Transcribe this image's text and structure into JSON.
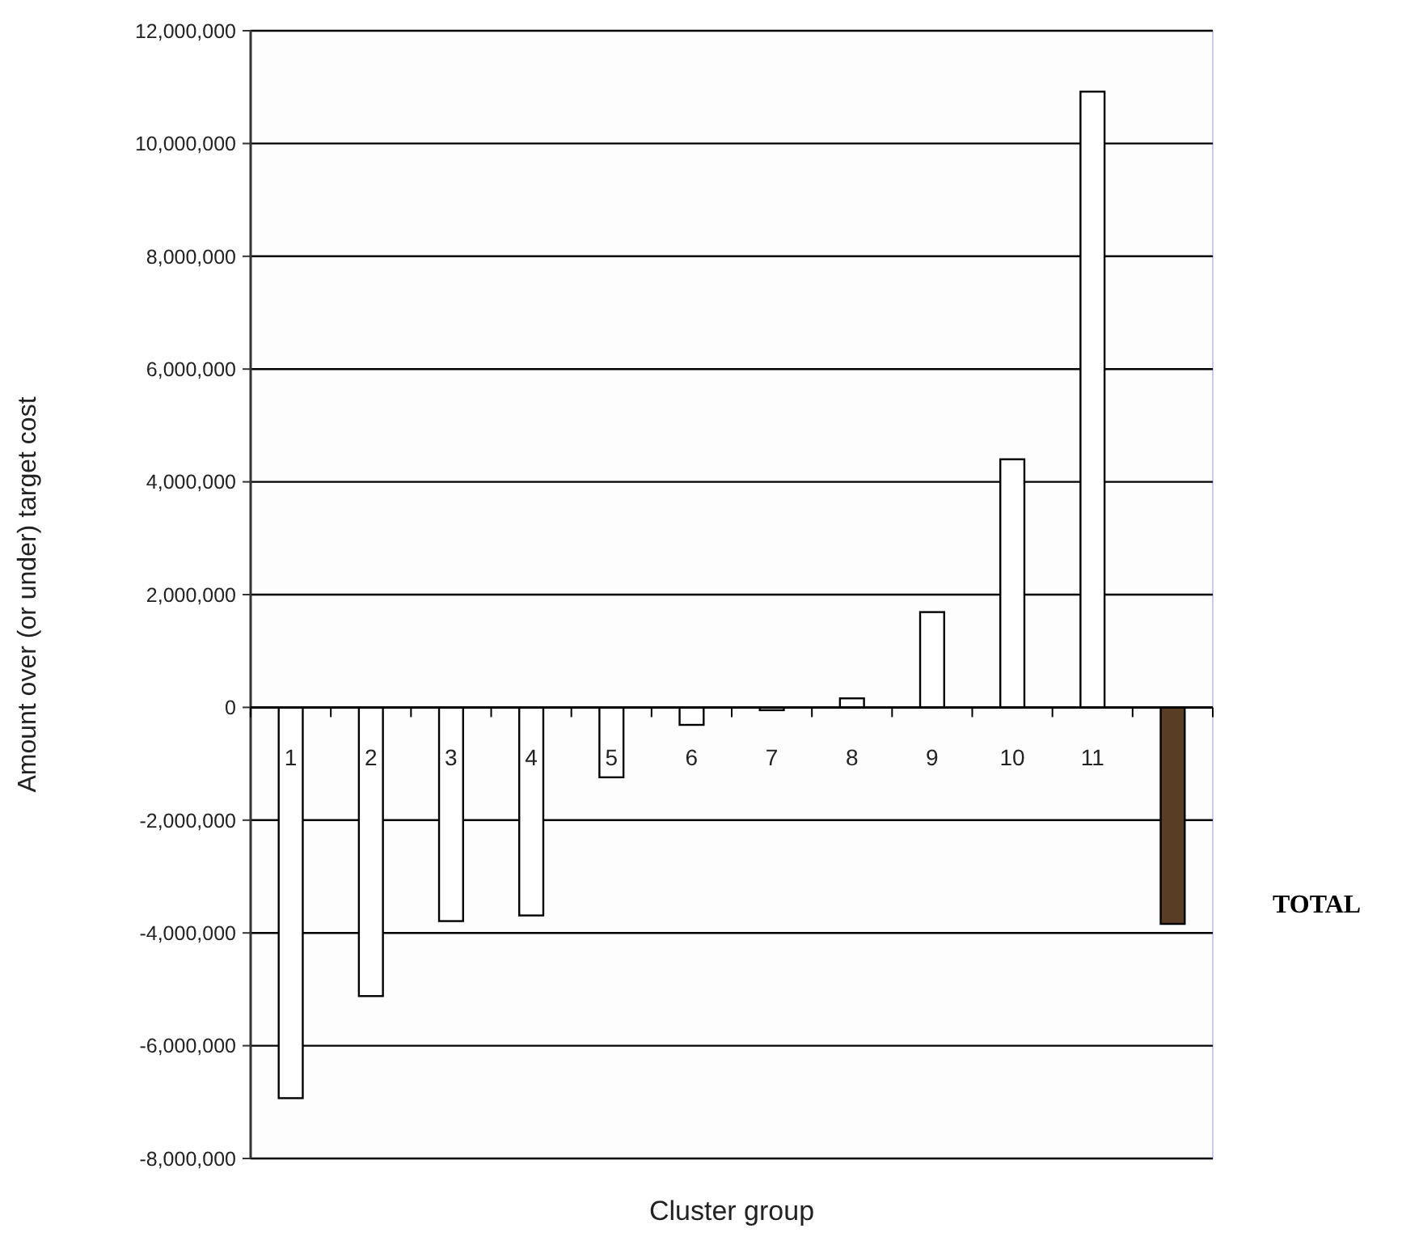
{
  "chart_data": {
    "type": "bar",
    "xlabel": "Cluster group",
    "ylabel": "Amount over (or under) target cost",
    "categories": [
      "1",
      "2",
      "3",
      "4",
      "5",
      "6",
      "7",
      "8",
      "9",
      "10",
      "11",
      null
    ],
    "values": [
      -6930000,
      -5120000,
      -3790000,
      -3690000,
      -1240000,
      -310000,
      -50000,
      160000,
      1690000,
      4400000,
      10920000,
      -3840000
    ],
    "colors": [
      "#ffffff",
      "#ffffff",
      "#ffffff",
      "#ffffff",
      "#ffffff",
      "#ffffff",
      "#ffffff",
      "#ffffff",
      "#ffffff",
      "#ffffff",
      "#ffffff",
      "#5a3d25"
    ],
    "ylim": [
      -8000000,
      12000000
    ],
    "yticks": [
      {
        "value": -8000000,
        "label": "-8,000,000"
      },
      {
        "value": -6000000,
        "label": "-6,000,000"
      },
      {
        "value": -4000000,
        "label": "-4,000,000"
      },
      {
        "value": -2000000,
        "label": "-2,000,000"
      },
      {
        "value": 0,
        "label": "0"
      },
      {
        "value": 2000000,
        "label": "2,000,000"
      },
      {
        "value": 4000000,
        "label": "4,000,000"
      },
      {
        "value": 6000000,
        "label": "6,000,000"
      },
      {
        "value": 8000000,
        "label": "8,000,000"
      },
      {
        "value": 10000000,
        "label": "10,000,000"
      },
      {
        "value": 12000000,
        "label": "12,000,000"
      }
    ],
    "grid": "y",
    "annotations": [
      "TOTAL"
    ]
  }
}
